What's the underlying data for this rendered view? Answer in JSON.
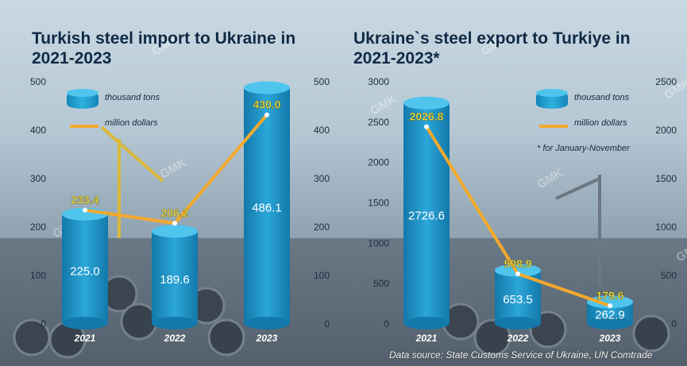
{
  "chart_data": [
    {
      "type": "bar",
      "title": "Turkish steel import to Ukraine in 2021-2023",
      "categories": [
        "2021",
        "2022",
        "2023"
      ],
      "series": [
        {
          "name": "thousand tons",
          "values": [
            225.0,
            189.6,
            486.1
          ],
          "axis": "left"
        },
        {
          "name": "million dollars",
          "values": [
            233.4,
            206.2,
            430.0
          ],
          "axis": "right",
          "render": "line"
        }
      ],
      "value_labels": {
        "bars": [
          "225.0",
          "189.6",
          "486.1"
        ],
        "line": [
          "233.4",
          "206.2",
          "430.0"
        ]
      },
      "ylim": [
        0,
        500
      ],
      "y2lim": [
        0,
        500
      ],
      "yticks": [
        "500",
        "400",
        "300",
        "200",
        "100",
        "0"
      ],
      "y2ticks": [
        "500",
        "400",
        "300",
        "200",
        "100",
        "0"
      ],
      "legend": "top-left"
    },
    {
      "type": "bar",
      "title": "Ukraine`s steel export to Turkiye in 2021-2023*",
      "categories": [
        "2021",
        "2022",
        "2023"
      ],
      "series": [
        {
          "name": "thousand tons",
          "values": [
            2726.6,
            653.5,
            262.9
          ],
          "axis": "left"
        },
        {
          "name": "million dollars",
          "values": [
            2026.8,
            508.9,
            179.6
          ],
          "axis": "right",
          "render": "line"
        }
      ],
      "value_labels": {
        "bars": [
          "2726.6",
          "653.5",
          "262.9"
        ],
        "line": [
          "2026.8",
          "508.9",
          "179.6"
        ]
      },
      "ylim": [
        0,
        3000
      ],
      "y2lim": [
        0,
        2500
      ],
      "yticks": [
        "3000",
        "2500",
        "2000",
        "1500",
        "1000",
        "500",
        "0"
      ],
      "y2ticks": [
        "2500",
        "2000",
        "1500",
        "1000",
        "500",
        "0"
      ],
      "legend": "top-right",
      "footnote": "* for January-November"
    }
  ],
  "legend": {
    "bars": "thousand tons",
    "line": "million dollars"
  },
  "source": "Data source: State Customs Service of Ukraine, UN Comtrade",
  "watermark": "GMK",
  "colors": {
    "bar_light": "#4fc5ee",
    "bar_mid": "#2ba7d8",
    "bar_dark": "#1378aa",
    "line": "#f4a92c",
    "line_label": "#f6ee52",
    "title": "#0f2a44",
    "axis_text": "#1d2d3b",
    "year_text": "#ffffff"
  }
}
